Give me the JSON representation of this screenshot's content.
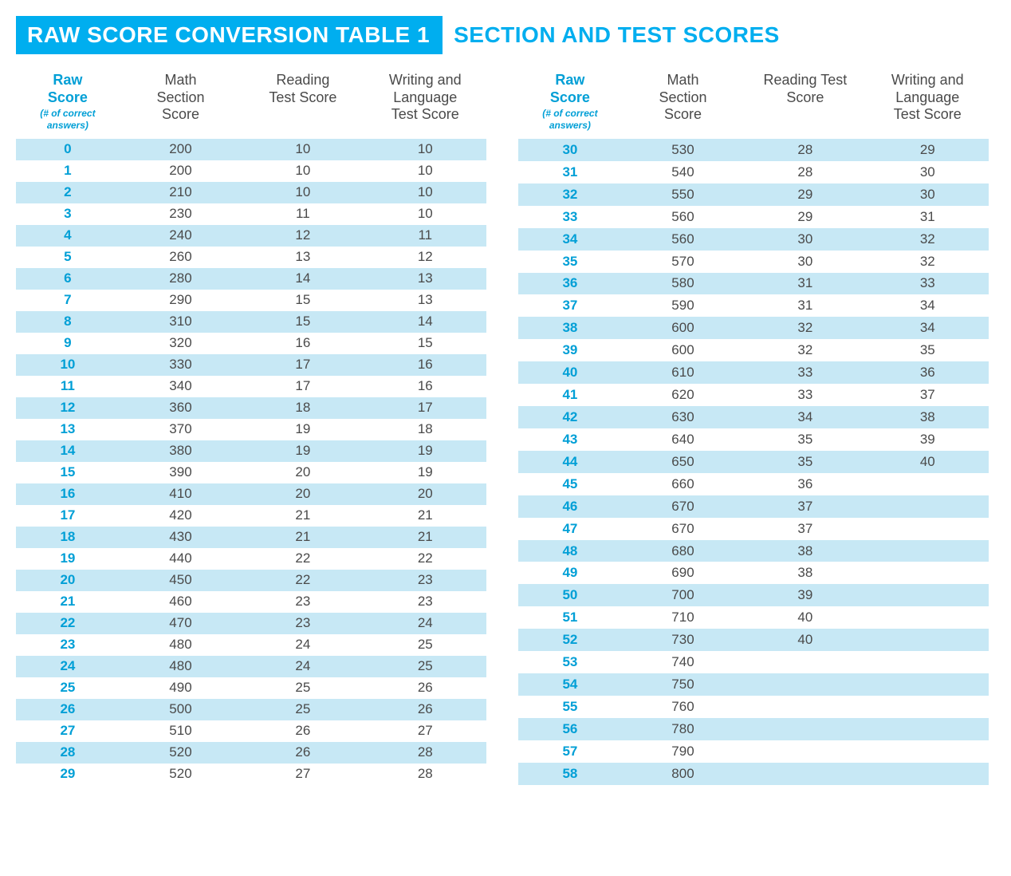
{
  "title": {
    "pill": "RAW SCORE CONVERSION TABLE 1",
    "rest": "SECTION AND TEST SCORES"
  },
  "colors": {
    "accent": "#00aeef",
    "header_text": "#009fd6",
    "body_text": "#4a4a4a",
    "row_stripe": "#c7e8f5",
    "background": "#ffffff"
  },
  "headers": {
    "raw_score_line1": "Raw",
    "raw_score_line2": "Score",
    "raw_score_sub1": "(# of correct",
    "raw_score_sub2": "answers)",
    "math_line1": "Math",
    "math_line2": "Section",
    "math_line3": "Score",
    "reading_line1": "Reading",
    "reading_line2": "Test Score",
    "reading2_line1": "Reading Test",
    "reading2_line2": "Score",
    "writing_line1": "Writing and",
    "writing_line2": "Language",
    "writing_line3": "Test Score"
  },
  "table": {
    "type": "table",
    "columns": [
      "Raw Score",
      "Math Section Score",
      "Reading Test Score",
      "Writing and Language Test Score"
    ],
    "col_widths_pct": [
      22,
      26,
      26,
      26
    ],
    "header_fontsize": 18,
    "cell_fontsize": 17,
    "raw_color": "#009fd6",
    "value_color": "#4a4a4a",
    "stripe_color": "#c7e8f5",
    "left_rows": [
      {
        "raw": "0",
        "math": "200",
        "reading": "10",
        "writing": "10"
      },
      {
        "raw": "1",
        "math": "200",
        "reading": "10",
        "writing": "10"
      },
      {
        "raw": "2",
        "math": "210",
        "reading": "10",
        "writing": "10"
      },
      {
        "raw": "3",
        "math": "230",
        "reading": "11",
        "writing": "10"
      },
      {
        "raw": "4",
        "math": "240",
        "reading": "12",
        "writing": "11"
      },
      {
        "raw": "5",
        "math": "260",
        "reading": "13",
        "writing": "12"
      },
      {
        "raw": "6",
        "math": "280",
        "reading": "14",
        "writing": "13"
      },
      {
        "raw": "7",
        "math": "290",
        "reading": "15",
        "writing": "13"
      },
      {
        "raw": "8",
        "math": "310",
        "reading": "15",
        "writing": "14"
      },
      {
        "raw": "9",
        "math": "320",
        "reading": "16",
        "writing": "15"
      },
      {
        "raw": "10",
        "math": "330",
        "reading": "17",
        "writing": "16"
      },
      {
        "raw": "11",
        "math": "340",
        "reading": "17",
        "writing": "16"
      },
      {
        "raw": "12",
        "math": "360",
        "reading": "18",
        "writing": "17"
      },
      {
        "raw": "13",
        "math": "370",
        "reading": "19",
        "writing": "18"
      },
      {
        "raw": "14",
        "math": "380",
        "reading": "19",
        "writing": "19"
      },
      {
        "raw": "15",
        "math": "390",
        "reading": "20",
        "writing": "19"
      },
      {
        "raw": "16",
        "math": "410",
        "reading": "20",
        "writing": "20"
      },
      {
        "raw": "17",
        "math": "420",
        "reading": "21",
        "writing": "21"
      },
      {
        "raw": "18",
        "math": "430",
        "reading": "21",
        "writing": "21"
      },
      {
        "raw": "19",
        "math": "440",
        "reading": "22",
        "writing": "22"
      },
      {
        "raw": "20",
        "math": "450",
        "reading": "22",
        "writing": "23"
      },
      {
        "raw": "21",
        "math": "460",
        "reading": "23",
        "writing": "23"
      },
      {
        "raw": "22",
        "math": "470",
        "reading": "23",
        "writing": "24"
      },
      {
        "raw": "23",
        "math": "480",
        "reading": "24",
        "writing": "25"
      },
      {
        "raw": "24",
        "math": "480",
        "reading": "24",
        "writing": "25"
      },
      {
        "raw": "25",
        "math": "490",
        "reading": "25",
        "writing": "26"
      },
      {
        "raw": "26",
        "math": "500",
        "reading": "25",
        "writing": "26"
      },
      {
        "raw": "27",
        "math": "510",
        "reading": "26",
        "writing": "27"
      },
      {
        "raw": "28",
        "math": "520",
        "reading": "26",
        "writing": "28"
      },
      {
        "raw": "29",
        "math": "520",
        "reading": "27",
        "writing": "28"
      }
    ],
    "right_rows": [
      {
        "raw": "30",
        "math": "530",
        "reading": "28",
        "writing": "29"
      },
      {
        "raw": "31",
        "math": "540",
        "reading": "28",
        "writing": "30"
      },
      {
        "raw": "32",
        "math": "550",
        "reading": "29",
        "writing": "30"
      },
      {
        "raw": "33",
        "math": "560",
        "reading": "29",
        "writing": "31"
      },
      {
        "raw": "34",
        "math": "560",
        "reading": "30",
        "writing": "32"
      },
      {
        "raw": "35",
        "math": "570",
        "reading": "30",
        "writing": "32"
      },
      {
        "raw": "36",
        "math": "580",
        "reading": "31",
        "writing": "33"
      },
      {
        "raw": "37",
        "math": "590",
        "reading": "31",
        "writing": "34"
      },
      {
        "raw": "38",
        "math": "600",
        "reading": "32",
        "writing": "34"
      },
      {
        "raw": "39",
        "math": "600",
        "reading": "32",
        "writing": "35"
      },
      {
        "raw": "40",
        "math": "610",
        "reading": "33",
        "writing": "36"
      },
      {
        "raw": "41",
        "math": "620",
        "reading": "33",
        "writing": "37"
      },
      {
        "raw": "42",
        "math": "630",
        "reading": "34",
        "writing": "38"
      },
      {
        "raw": "43",
        "math": "640",
        "reading": "35",
        "writing": "39"
      },
      {
        "raw": "44",
        "math": "650",
        "reading": "35",
        "writing": "40"
      },
      {
        "raw": "45",
        "math": "660",
        "reading": "36",
        "writing": ""
      },
      {
        "raw": "46",
        "math": "670",
        "reading": "37",
        "writing": ""
      },
      {
        "raw": "47",
        "math": "670",
        "reading": "37",
        "writing": ""
      },
      {
        "raw": "48",
        "math": "680",
        "reading": "38",
        "writing": ""
      },
      {
        "raw": "49",
        "math": "690",
        "reading": "38",
        "writing": ""
      },
      {
        "raw": "50",
        "math": "700",
        "reading": "39",
        "writing": ""
      },
      {
        "raw": "51",
        "math": "710",
        "reading": "40",
        "writing": ""
      },
      {
        "raw": "52",
        "math": "730",
        "reading": "40",
        "writing": ""
      },
      {
        "raw": "53",
        "math": "740",
        "reading": "",
        "writing": ""
      },
      {
        "raw": "54",
        "math": "750",
        "reading": "",
        "writing": ""
      },
      {
        "raw": "55",
        "math": "760",
        "reading": "",
        "writing": ""
      },
      {
        "raw": "56",
        "math": "780",
        "reading": "",
        "writing": ""
      },
      {
        "raw": "57",
        "math": "790",
        "reading": "",
        "writing": ""
      },
      {
        "raw": "58",
        "math": "800",
        "reading": "",
        "writing": ""
      }
    ]
  }
}
